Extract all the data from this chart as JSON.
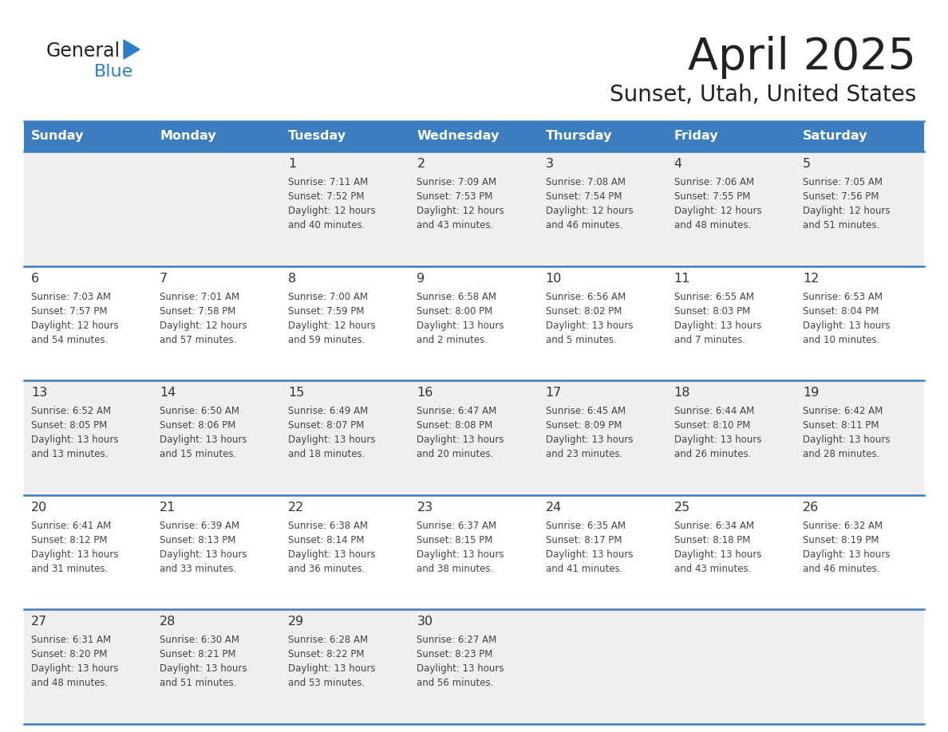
{
  "title": "April 2025",
  "subtitle": "Sunset, Utah, United States",
  "header_bg": "#3a7ebf",
  "header_text_color": "#ffffff",
  "cell_bg_odd": "#efefef",
  "cell_bg_even": "#ffffff",
  "border_color": "#3a7ebf",
  "text_color": "#444444",
  "day_num_color": "#333333",
  "days_of_week": [
    "Sunday",
    "Monday",
    "Tuesday",
    "Wednesday",
    "Thursday",
    "Friday",
    "Saturday"
  ],
  "weeks": [
    [
      {
        "day": "",
        "sunrise": "",
        "sunset": "",
        "daylight": ""
      },
      {
        "day": "",
        "sunrise": "",
        "sunset": "",
        "daylight": ""
      },
      {
        "day": "1",
        "sunrise": "Sunrise: 7:11 AM",
        "sunset": "Sunset: 7:52 PM",
        "daylight": "Daylight: 12 hours\nand 40 minutes."
      },
      {
        "day": "2",
        "sunrise": "Sunrise: 7:09 AM",
        "sunset": "Sunset: 7:53 PM",
        "daylight": "Daylight: 12 hours\nand 43 minutes."
      },
      {
        "day": "3",
        "sunrise": "Sunrise: 7:08 AM",
        "sunset": "Sunset: 7:54 PM",
        "daylight": "Daylight: 12 hours\nand 46 minutes."
      },
      {
        "day": "4",
        "sunrise": "Sunrise: 7:06 AM",
        "sunset": "Sunset: 7:55 PM",
        "daylight": "Daylight: 12 hours\nand 48 minutes."
      },
      {
        "day": "5",
        "sunrise": "Sunrise: 7:05 AM",
        "sunset": "Sunset: 7:56 PM",
        "daylight": "Daylight: 12 hours\nand 51 minutes."
      }
    ],
    [
      {
        "day": "6",
        "sunrise": "Sunrise: 7:03 AM",
        "sunset": "Sunset: 7:57 PM",
        "daylight": "Daylight: 12 hours\nand 54 minutes."
      },
      {
        "day": "7",
        "sunrise": "Sunrise: 7:01 AM",
        "sunset": "Sunset: 7:58 PM",
        "daylight": "Daylight: 12 hours\nand 57 minutes."
      },
      {
        "day": "8",
        "sunrise": "Sunrise: 7:00 AM",
        "sunset": "Sunset: 7:59 PM",
        "daylight": "Daylight: 12 hours\nand 59 minutes."
      },
      {
        "day": "9",
        "sunrise": "Sunrise: 6:58 AM",
        "sunset": "Sunset: 8:00 PM",
        "daylight": "Daylight: 13 hours\nand 2 minutes."
      },
      {
        "day": "10",
        "sunrise": "Sunrise: 6:56 AM",
        "sunset": "Sunset: 8:02 PM",
        "daylight": "Daylight: 13 hours\nand 5 minutes."
      },
      {
        "day": "11",
        "sunrise": "Sunrise: 6:55 AM",
        "sunset": "Sunset: 8:03 PM",
        "daylight": "Daylight: 13 hours\nand 7 minutes."
      },
      {
        "day": "12",
        "sunrise": "Sunrise: 6:53 AM",
        "sunset": "Sunset: 8:04 PM",
        "daylight": "Daylight: 13 hours\nand 10 minutes."
      }
    ],
    [
      {
        "day": "13",
        "sunrise": "Sunrise: 6:52 AM",
        "sunset": "Sunset: 8:05 PM",
        "daylight": "Daylight: 13 hours\nand 13 minutes."
      },
      {
        "day": "14",
        "sunrise": "Sunrise: 6:50 AM",
        "sunset": "Sunset: 8:06 PM",
        "daylight": "Daylight: 13 hours\nand 15 minutes."
      },
      {
        "day": "15",
        "sunrise": "Sunrise: 6:49 AM",
        "sunset": "Sunset: 8:07 PM",
        "daylight": "Daylight: 13 hours\nand 18 minutes."
      },
      {
        "day": "16",
        "sunrise": "Sunrise: 6:47 AM",
        "sunset": "Sunset: 8:08 PM",
        "daylight": "Daylight: 13 hours\nand 20 minutes."
      },
      {
        "day": "17",
        "sunrise": "Sunrise: 6:45 AM",
        "sunset": "Sunset: 8:09 PM",
        "daylight": "Daylight: 13 hours\nand 23 minutes."
      },
      {
        "day": "18",
        "sunrise": "Sunrise: 6:44 AM",
        "sunset": "Sunset: 8:10 PM",
        "daylight": "Daylight: 13 hours\nand 26 minutes."
      },
      {
        "day": "19",
        "sunrise": "Sunrise: 6:42 AM",
        "sunset": "Sunset: 8:11 PM",
        "daylight": "Daylight: 13 hours\nand 28 minutes."
      }
    ],
    [
      {
        "day": "20",
        "sunrise": "Sunrise: 6:41 AM",
        "sunset": "Sunset: 8:12 PM",
        "daylight": "Daylight: 13 hours\nand 31 minutes."
      },
      {
        "day": "21",
        "sunrise": "Sunrise: 6:39 AM",
        "sunset": "Sunset: 8:13 PM",
        "daylight": "Daylight: 13 hours\nand 33 minutes."
      },
      {
        "day": "22",
        "sunrise": "Sunrise: 6:38 AM",
        "sunset": "Sunset: 8:14 PM",
        "daylight": "Daylight: 13 hours\nand 36 minutes."
      },
      {
        "day": "23",
        "sunrise": "Sunrise: 6:37 AM",
        "sunset": "Sunset: 8:15 PM",
        "daylight": "Daylight: 13 hours\nand 38 minutes."
      },
      {
        "day": "24",
        "sunrise": "Sunrise: 6:35 AM",
        "sunset": "Sunset: 8:17 PM",
        "daylight": "Daylight: 13 hours\nand 41 minutes."
      },
      {
        "day": "25",
        "sunrise": "Sunrise: 6:34 AM",
        "sunset": "Sunset: 8:18 PM",
        "daylight": "Daylight: 13 hours\nand 43 minutes."
      },
      {
        "day": "26",
        "sunrise": "Sunrise: 6:32 AM",
        "sunset": "Sunset: 8:19 PM",
        "daylight": "Daylight: 13 hours\nand 46 minutes."
      }
    ],
    [
      {
        "day": "27",
        "sunrise": "Sunrise: 6:31 AM",
        "sunset": "Sunset: 8:20 PM",
        "daylight": "Daylight: 13 hours\nand 48 minutes."
      },
      {
        "day": "28",
        "sunrise": "Sunrise: 6:30 AM",
        "sunset": "Sunset: 8:21 PM",
        "daylight": "Daylight: 13 hours\nand 51 minutes."
      },
      {
        "day": "29",
        "sunrise": "Sunrise: 6:28 AM",
        "sunset": "Sunset: 8:22 PM",
        "daylight": "Daylight: 13 hours\nand 53 minutes."
      },
      {
        "day": "30",
        "sunrise": "Sunrise: 6:27 AM",
        "sunset": "Sunset: 8:23 PM",
        "daylight": "Daylight: 13 hours\nand 56 minutes."
      },
      {
        "day": "",
        "sunrise": "",
        "sunset": "",
        "daylight": ""
      },
      {
        "day": "",
        "sunrise": "",
        "sunset": "",
        "daylight": ""
      },
      {
        "day": "",
        "sunrise": "",
        "sunset": "",
        "daylight": ""
      }
    ]
  ]
}
